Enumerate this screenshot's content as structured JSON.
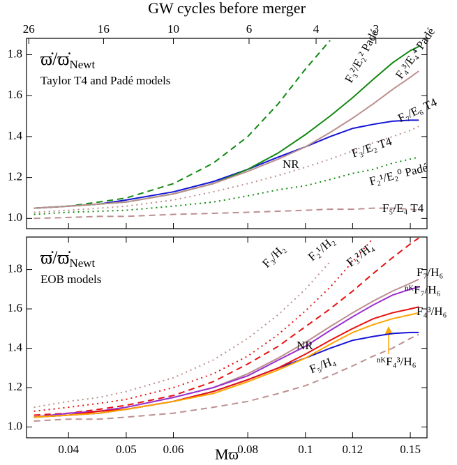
{
  "chart_data": [
    {
      "type": "line",
      "title": "ϖ̇/ϖ̇",
      "title_sub": "Newt",
      "subtitle": "Taylor T4 and Padé models",
      "x2label": "GW cycles before merger",
      "x2ticks": [
        {
          "value": 0.0343,
          "label": "26"
        },
        {
          "value": 0.0458,
          "label": "16"
        },
        {
          "value": 0.06,
          "label": "10"
        },
        {
          "value": 0.0804,
          "label": "6"
        },
        {
          "value": 0.1042,
          "label": "4"
        },
        {
          "value": 0.1313,
          "label": "3"
        }
      ],
      "xlim": [
        0.034,
        0.16
      ],
      "xscale": "log",
      "ylim": [
        0.95,
        1.88
      ],
      "yticks": [
        {
          "value": 1,
          "label": "1.0"
        },
        1.2,
        1.4,
        1.6,
        1.8
      ],
      "x": [
        0.035,
        0.04,
        0.045,
        0.05,
        0.06,
        0.07,
        0.08,
        0.09,
        0.1,
        0.11,
        0.12,
        0.13,
        0.14,
        0.15,
        0.155
      ],
      "series": [
        {
          "name": "NR",
          "color": "#1414d8",
          "dash": "solid",
          "values": [
            1.05,
            1.06,
            1.07,
            1.09,
            1.13,
            1.18,
            1.24,
            1.3,
            1.35,
            1.4,
            1.44,
            1.46,
            1.475,
            1.48,
            1.48
          ]
        },
        {
          "name": "F₃²/E₂² Padé",
          "color": "#118811",
          "dash": "dashed",
          "values": [
            1.05,
            1.06,
            1.08,
            1.1,
            1.17,
            1.27,
            1.4,
            1.56,
            1.73,
            1.87,
            null,
            null,
            null,
            null,
            null
          ]
        },
        {
          "name": "F₄³/E₄⁴ Padé",
          "color": "#118811",
          "dash": "solid",
          "values": [
            1.05,
            1.06,
            1.07,
            1.08,
            1.12,
            1.17,
            1.24,
            1.32,
            1.41,
            1.5,
            1.59,
            1.68,
            1.76,
            1.82,
            1.84
          ]
        },
        {
          "name": "F₇/E₆ T4",
          "color": "#bc8f8f",
          "dash": "solid",
          "values": [
            1.05,
            1.06,
            1.07,
            1.08,
            1.12,
            1.17,
            1.23,
            1.29,
            1.35,
            1.42,
            1.49,
            1.56,
            1.63,
            1.69,
            1.72
          ]
        },
        {
          "name": "F₃/E₂ T4",
          "color": "#bc8f8f",
          "dash": "dotted",
          "values": [
            1.03,
            1.04,
            1.05,
            1.06,
            1.09,
            1.13,
            1.17,
            1.21,
            1.25,
            1.29,
            1.33,
            1.37,
            1.4,
            1.43,
            1.45
          ]
        },
        {
          "name": "F₂¹/E₂⁰ Padé",
          "color": "#118811",
          "dash": "dotted",
          "values": [
            1.02,
            1.03,
            1.035,
            1.04,
            1.06,
            1.08,
            1.11,
            1.14,
            1.16,
            1.19,
            1.22,
            1.24,
            1.27,
            1.29,
            1.3
          ]
        },
        {
          "name": "F₅/E₄ T4",
          "color": "#bc8f8f",
          "dash": "dashed",
          "values": [
            1.0,
            1.005,
            1.01,
            1.01,
            1.02,
            1.025,
            1.03,
            1.035,
            1.04,
            1.045,
            1.045,
            1.05,
            1.05,
            1.045,
            1.04
          ]
        }
      ]
    },
    {
      "type": "line",
      "title": "ϖ̇/ϖ̇",
      "title_sub": "Newt",
      "subtitle": "EOB models",
      "xlabel": "Mϖ",
      "xlim": [
        0.034,
        0.16
      ],
      "xscale": "log",
      "xticks": [
        0.04,
        0.05,
        0.06,
        0.08,
        0.1,
        0.12,
        0.15
      ],
      "ylim": [
        0.945,
        1.965
      ],
      "yticks": [
        {
          "value": 1,
          "label": "1.0"
        },
        1.2,
        1.4,
        1.6,
        1.8
      ],
      "x": [
        0.035,
        0.04,
        0.045,
        0.05,
        0.06,
        0.07,
        0.08,
        0.09,
        0.1,
        0.11,
        0.12,
        0.13,
        0.14,
        0.15,
        0.155
      ],
      "series": [
        {
          "name": "NR",
          "color": "#1414d8",
          "dash": "solid",
          "values": [
            1.05,
            1.06,
            1.07,
            1.09,
            1.13,
            1.18,
            1.24,
            1.3,
            1.35,
            1.4,
            1.44,
            1.46,
            1.475,
            1.48,
            1.48
          ]
        },
        {
          "name": "F₃/H₂",
          "color": "#bc8f8f",
          "dash": "dotted",
          "values": [
            1.1,
            1.13,
            1.15,
            1.18,
            1.25,
            1.34,
            1.45,
            1.57,
            1.7,
            1.84,
            null,
            null,
            null,
            null,
            null
          ]
        },
        {
          "name": "F₂¹/H₂",
          "color": "#e81010",
          "dash": "dotted",
          "values": [
            1.08,
            1.1,
            1.12,
            1.14,
            1.2,
            1.27,
            1.36,
            1.47,
            1.59,
            1.71,
            1.84,
            1.96,
            null,
            null,
            null
          ]
        },
        {
          "name": "F₃²/H₄",
          "color": "#e81010",
          "dash": "dashed",
          "values": [
            1.06,
            1.07,
            1.09,
            1.11,
            1.16,
            1.23,
            1.32,
            1.41,
            1.51,
            1.6,
            1.69,
            1.78,
            1.86,
            1.93,
            1.96
          ]
        },
        {
          "name": "F₇/H₆",
          "color": "#bc8f8f",
          "dash": "solid",
          "values": [
            1.05,
            1.07,
            1.08,
            1.1,
            1.15,
            1.2,
            1.27,
            1.35,
            1.43,
            1.51,
            1.58,
            1.64,
            1.69,
            1.73,
            1.75
          ]
        },
        {
          "name": "ⁿᴷF₇/H₆",
          "color": "#9b30d0",
          "dash": "solid",
          "values": [
            1.05,
            1.07,
            1.08,
            1.1,
            1.15,
            1.2,
            1.26,
            1.34,
            1.41,
            1.49,
            1.56,
            1.62,
            1.67,
            1.7,
            1.71
          ]
        },
        {
          "name": "F₄³/H₆",
          "color": "#e81010",
          "dash": "solid",
          "values": [
            1.05,
            1.06,
            1.08,
            1.09,
            1.13,
            1.18,
            1.24,
            1.3,
            1.37,
            1.44,
            1.5,
            1.55,
            1.58,
            1.6,
            1.61
          ]
        },
        {
          "name": "ⁿᴷF₄³/H₆",
          "color": "#ffa500",
          "dash": "solid",
          "values": [
            1.05,
            1.06,
            1.07,
            1.09,
            1.13,
            1.17,
            1.23,
            1.29,
            1.35,
            1.42,
            1.48,
            1.52,
            1.55,
            1.57,
            1.58
          ]
        },
        {
          "name": "F₅/H₄",
          "color": "#bc8f8f",
          "dash": "dashed",
          "values": [
            1.03,
            1.04,
            1.04,
            1.05,
            1.07,
            1.1,
            1.13,
            1.17,
            1.21,
            1.26,
            1.31,
            1.36,
            1.4,
            1.45,
            1.47
          ]
        }
      ]
    }
  ]
}
